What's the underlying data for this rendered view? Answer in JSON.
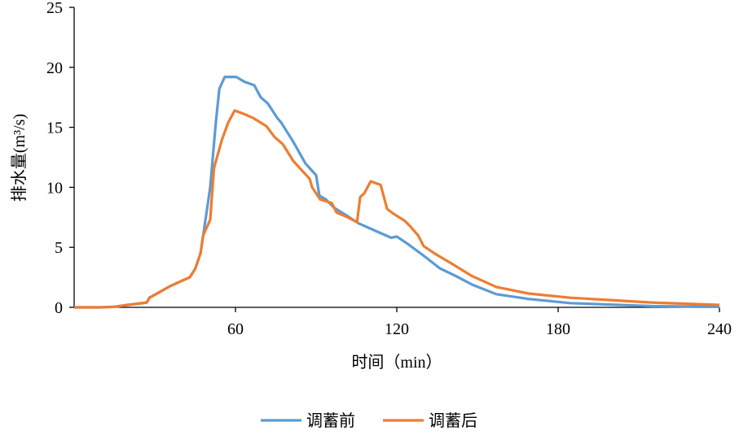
{
  "chart_data": {
    "type": "line",
    "title": "",
    "xlabel": "时间（min）",
    "ylabel": "排水量(m³/s)",
    "xlim": [
      0,
      240
    ],
    "ylim": [
      0,
      25
    ],
    "xticks": [
      60,
      120,
      180,
      240
    ],
    "yticks": [
      0,
      5,
      10,
      15,
      20,
      25
    ],
    "grid": false,
    "legend_position": "bottom",
    "series": [
      {
        "name": "调蓄前",
        "color": "#5B9BD5",
        "points": [
          [
            0,
            0
          ],
          [
            10,
            0
          ],
          [
            15,
            0.05
          ],
          [
            20,
            0.2
          ],
          [
            27,
            0.4
          ],
          [
            28,
            0.8
          ],
          [
            32,
            1.3
          ],
          [
            36,
            1.8
          ],
          [
            40,
            2.2
          ],
          [
            43,
            2.5
          ],
          [
            45,
            3.2
          ],
          [
            47,
            4.5
          ],
          [
            48,
            6
          ],
          [
            50.6,
            10
          ],
          [
            52.7,
            15.4
          ],
          [
            54,
            18.2
          ],
          [
            56,
            19.2
          ],
          [
            58.8,
            19.2
          ],
          [
            60.3,
            19.2
          ],
          [
            63.3,
            18.8
          ],
          [
            67,
            18.5
          ],
          [
            69.4,
            17.5
          ],
          [
            72,
            17
          ],
          [
            75.5,
            15.8
          ],
          [
            77,
            15.4
          ],
          [
            81.5,
            13.8
          ],
          [
            86,
            12
          ],
          [
            90,
            11
          ],
          [
            91.2,
            9.3
          ],
          [
            93.6,
            9
          ],
          [
            96.7,
            8.3
          ],
          [
            101,
            7.7
          ],
          [
            105.8,
            7
          ],
          [
            111.8,
            6.4
          ],
          [
            117.9,
            5.8
          ],
          [
            120,
            5.9
          ],
          [
            124,
            5.3
          ],
          [
            130,
            4.3
          ],
          [
            136,
            3.25
          ],
          [
            142,
            2.6
          ],
          [
            148,
            1.9
          ],
          [
            157,
            1.1
          ],
          [
            169,
            0.7
          ],
          [
            184.5,
            0.35
          ],
          [
            215,
            0.1
          ],
          [
            240,
            0.05
          ]
        ]
      },
      {
        "name": "调蓄后",
        "color": "#ED7D31",
        "points": [
          [
            0,
            0
          ],
          [
            10,
            0
          ],
          [
            15,
            0.05
          ],
          [
            20,
            0.2
          ],
          [
            27,
            0.4
          ],
          [
            28,
            0.8
          ],
          [
            32,
            1.3
          ],
          [
            36,
            1.8
          ],
          [
            40,
            2.2
          ],
          [
            43,
            2.5
          ],
          [
            45,
            3.2
          ],
          [
            47,
            4.5
          ],
          [
            48,
            6
          ],
          [
            50.6,
            7.3
          ],
          [
            52,
            11.6
          ],
          [
            55,
            14
          ],
          [
            57.3,
            15.4
          ],
          [
            59.7,
            16.4
          ],
          [
            63.3,
            16.1
          ],
          [
            66.4,
            15.8
          ],
          [
            71.5,
            15.1
          ],
          [
            74.5,
            14.2
          ],
          [
            77.6,
            13.6
          ],
          [
            81.5,
            12.2
          ],
          [
            87.6,
            10.7
          ],
          [
            88.5,
            10
          ],
          [
            91.5,
            9.0
          ],
          [
            95.8,
            8.7
          ],
          [
            97.6,
            7.9
          ],
          [
            101.8,
            7.5
          ],
          [
            105.2,
            7.1
          ],
          [
            106.4,
            9.2
          ],
          [
            107.9,
            9.5
          ],
          [
            110.3,
            10.5
          ],
          [
            114,
            10.2
          ],
          [
            116.4,
            8.2
          ],
          [
            118.8,
            7.8
          ],
          [
            123,
            7.2
          ],
          [
            124.8,
            6.8
          ],
          [
            127.9,
            6.0
          ],
          [
            130,
            5.1
          ],
          [
            134,
            4.5
          ],
          [
            140,
            3.7
          ],
          [
            148,
            2.6
          ],
          [
            157,
            1.7
          ],
          [
            169,
            1.15
          ],
          [
            184.5,
            0.8
          ],
          [
            215,
            0.4
          ],
          [
            240,
            0.2
          ]
        ]
      }
    ]
  }
}
